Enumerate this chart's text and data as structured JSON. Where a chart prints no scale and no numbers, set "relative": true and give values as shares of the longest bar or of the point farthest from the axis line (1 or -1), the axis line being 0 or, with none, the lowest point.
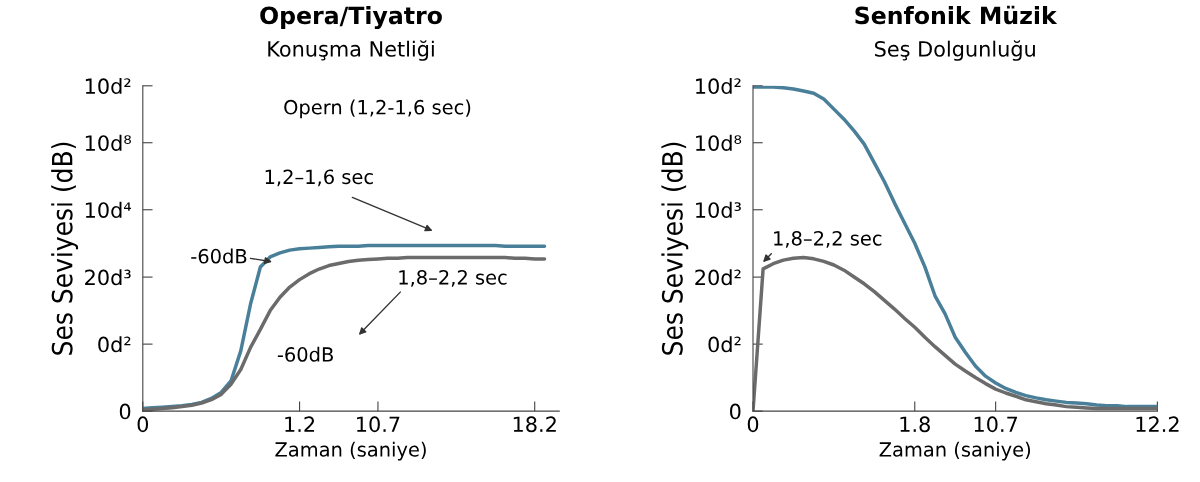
{
  "chart_data": [
    {
      "type": "line",
      "title": "Opera/Tiyatro",
      "subtitle": "Konuşma Netliği",
      "xlabel": "Zaman (saniye)",
      "ylabel": "Ses Seviyesi (dB)",
      "relative": true,
      "categories": [
        "0",
        null,
        null,
        null,
        null,
        null,
        null,
        null,
        null,
        null,
        null,
        null,
        null,
        null,
        null,
        null,
        "1.2",
        null,
        null,
        null,
        null,
        null,
        null,
        null,
        "10.7",
        null,
        null,
        null,
        null,
        null,
        null,
        null,
        null,
        null,
        null,
        null,
        null,
        null,
        null,
        null,
        "18.2",
        null
      ],
      "series": [
        {
          "color": "#4a7f99",
          "values": [
            0.016,
            0.02,
            0.024,
            0.028,
            0.032,
            0.04,
            0.053,
            0.077,
            0.113,
            0.182,
            0.364,
            0.648,
            0.87,
            0.931,
            0.955,
            0.972,
            0.98,
            0.984,
            0.988,
            0.992,
            0.996,
            0.996,
            0.996,
            1,
            1,
            1,
            1,
            1,
            1,
            1,
            1,
            1,
            1,
            1,
            1,
            1,
            1,
            0.996,
            0.996,
            0.996,
            0.996,
            0.996
          ]
        },
        {
          "color": "#6b6b6b",
          "values": [
            0.008,
            0.012,
            0.016,
            0.02,
            0.028,
            0.036,
            0.049,
            0.069,
            0.101,
            0.162,
            0.251,
            0.385,
            0.494,
            0.607,
            0.688,
            0.749,
            0.794,
            0.83,
            0.858,
            0.879,
            0.891,
            0.903,
            0.911,
            0.915,
            0.919,
            0.923,
            0.923,
            0.927,
            0.927,
            0.927,
            0.927,
            0.927,
            0.927,
            0.927,
            0.927,
            0.927,
            0.927,
            0.927,
            0.923,
            0.923,
            0.919,
            0.919
          ]
        }
      ],
      "annotations": [
        "0",
        "0d²",
        "20d³",
        "10d⁴",
        "10d⁸",
        "10d²",
        "Opern (1,2-1,6 sec)",
        "1,2–1,6 sec",
        "-60dB",
        "1,8–2,2 sec",
        "-60dB"
      ]
    },
    {
      "type": "line",
      "title": "Senfonik Müzik",
      "subtitle": "Seş Dolgunluğu",
      "xlabel": "Zaman (saniye)",
      "ylabel": "Ses Seviyesi (dB)",
      "relative": true,
      "categories": [
        "0",
        null,
        null,
        null,
        null,
        null,
        null,
        null,
        null,
        null,
        null,
        null,
        null,
        null,
        null,
        null,
        "1.8",
        null,
        null,
        null,
        null,
        null,
        null,
        null,
        "10.7",
        null,
        null,
        null,
        null,
        null,
        null,
        null,
        null,
        null,
        null,
        null,
        null,
        null,
        null,
        null,
        "12.2"
      ],
      "series": [
        {
          "color": "#4a7f99",
          "values": [
            1,
            1,
            1,
            0.998,
            0.994,
            0.988,
            0.981,
            0.963,
            0.932,
            0.901,
            0.865,
            0.824,
            0.766,
            0.708,
            0.642,
            0.58,
            0.518,
            0.445,
            0.356,
            0.3,
            0.228,
            0.182,
            0.139,
            0.108,
            0.087,
            0.07,
            0.058,
            0.048,
            0.041,
            0.035,
            0.031,
            0.027,
            0.025,
            0.023,
            0.019,
            0.017,
            0.017,
            0.014,
            0.014,
            0.014,
            0.014
          ]
        },
        {
          "color": "#6b6b6b",
          "values": [
            0,
            0.439,
            0.455,
            0.466,
            0.472,
            0.474,
            0.47,
            0.462,
            0.451,
            0.435,
            0.414,
            0.393,
            0.369,
            0.342,
            0.315,
            0.286,
            0.259,
            0.228,
            0.199,
            0.172,
            0.145,
            0.124,
            0.104,
            0.085,
            0.068,
            0.056,
            0.046,
            0.035,
            0.029,
            0.023,
            0.019,
            0.014,
            0.012,
            0.01,
            0.008,
            0.008,
            0.008,
            0.008,
            0.008,
            0.008,
            0.008
          ]
        }
      ],
      "annotations": [
        "0",
        "0d²",
        "20d²",
        "10d³",
        "10d⁸",
        "10d²",
        "1,8–2,2 sec"
      ]
    }
  ]
}
